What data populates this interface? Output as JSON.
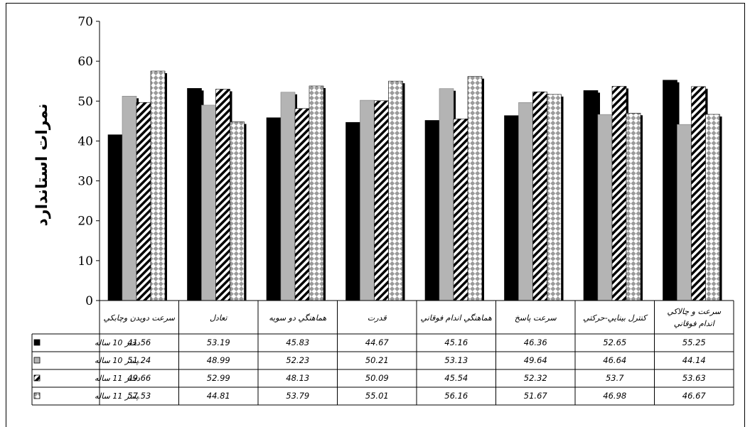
{
  "chart_data": {
    "type": "bar",
    "ylabel": "نمرات  استاندارد",
    "ylim": [
      0,
      70
    ],
    "yticks": [
      0,
      10,
      20,
      30,
      40,
      50,
      60,
      70
    ],
    "grid": false,
    "legend": "data-table",
    "categories": [
      "سرعت دويدن وچابكي",
      "تعادل",
      "هماهنگي دو سويه",
      "قدرت",
      "هماهنگي اندام فوقاني",
      "سرعت پاسخ",
      "كنترل بينايي-حركتي",
      "سرعت و چالاكي\nاندام فوقاني"
    ],
    "series": [
      {
        "name": "دختر 10 ساله",
        "pattern": "solid-black",
        "values": [
          41.56,
          53.19,
          45.83,
          44.67,
          45.16,
          46.36,
          52.65,
          55.25
        ]
      },
      {
        "name": "پسر 10 ساله",
        "pattern": "solid-gray",
        "values": [
          51.24,
          48.99,
          52.23,
          50.21,
          53.13,
          49.64,
          46.64,
          44.14
        ]
      },
      {
        "name": "دختر 11 ساله",
        "pattern": "diagonal-stripes",
        "values": [
          49.66,
          52.99,
          48.13,
          50.09,
          45.54,
          52.32,
          53.7,
          53.63
        ]
      },
      {
        "name": "پسر 11 ساله",
        "pattern": "diamond-checker",
        "values": [
          57.53,
          44.81,
          53.79,
          55.01,
          56.16,
          51.67,
          46.98,
          46.67
        ]
      }
    ]
  },
  "colors": {
    "black": "#000000",
    "gray": "#b4b4b4",
    "stripe": "#000000",
    "diamond": "#9a9a9a",
    "shadow": "#000000"
  }
}
